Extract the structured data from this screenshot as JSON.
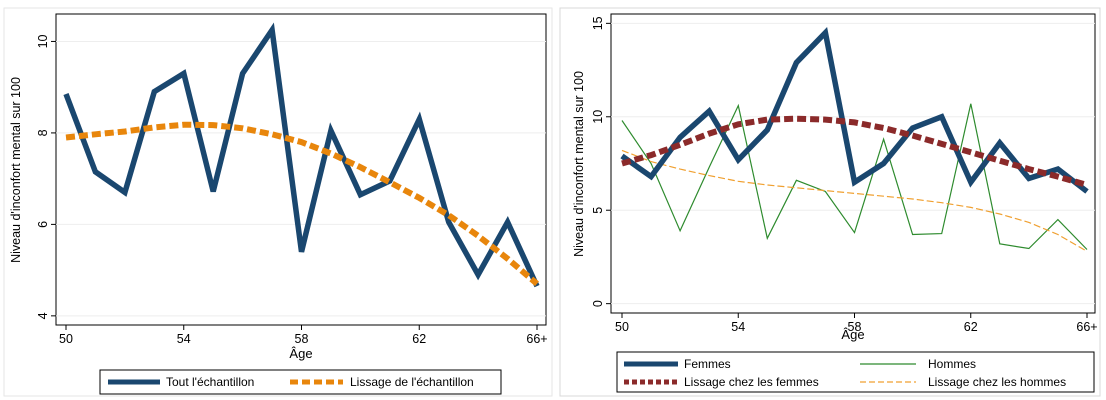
{
  "colors": {
    "navy": "#1a476f",
    "orange": "#e8860c",
    "green": "#2e8b2e",
    "maroon": "#8b2a2a",
    "light_orange": "#f0a030"
  },
  "chart_data": [
    {
      "type": "line",
      "xlabel": "Âge",
      "ylabel": "Niveau d'inconfort mental sur 100",
      "x": [
        50,
        51,
        52,
        53,
        54,
        55,
        56,
        57,
        58,
        59,
        60,
        61,
        62,
        63,
        64,
        65,
        66
      ],
      "xlim": [
        50,
        66
      ],
      "ylim": [
        3.8,
        10.6
      ],
      "xticks": [
        50,
        54,
        58,
        62,
        66
      ],
      "xtick_labels": [
        "50",
        "54",
        "58",
        "62",
        "66+"
      ],
      "yticks": [
        4,
        6,
        8,
        10
      ],
      "ytick_labels": [
        "4",
        "6",
        "8",
        "10"
      ],
      "legend_position": "bottom",
      "series": [
        {
          "name": "Tout l'échantillon",
          "style": "thick-solid",
          "color": "#1a476f",
          "values": [
            8.85,
            7.15,
            6.7,
            8.9,
            9.3,
            6.72,
            9.3,
            10.25,
            5.4,
            8.05,
            6.65,
            6.95,
            8.3,
            6.05,
            4.9,
            6.05,
            4.65
          ]
        },
        {
          "name": "Lissage de l'échantillon",
          "style": "thick-dashed",
          "color": "#e8860c",
          "values": [
            7.9,
            7.97,
            8.03,
            8.12,
            8.18,
            8.17,
            8.1,
            7.97,
            7.8,
            7.55,
            7.25,
            6.92,
            6.58,
            6.2,
            5.75,
            5.25,
            4.7
          ]
        }
      ]
    },
    {
      "type": "line",
      "xlabel": "Âge",
      "ylabel": "Niveau d'inconfort mental sur 100",
      "x": [
        50,
        51,
        52,
        53,
        54,
        55,
        56,
        57,
        58,
        59,
        60,
        61,
        62,
        63,
        64,
        65,
        66
      ],
      "xlim": [
        50,
        66
      ],
      "ylim": [
        -0.5,
        15.5
      ],
      "xticks": [
        50,
        54,
        58,
        62,
        66
      ],
      "xtick_labels": [
        "50",
        "54",
        "58",
        "62",
        "66+"
      ],
      "yticks": [
        0,
        5,
        10,
        15
      ],
      "ytick_labels": [
        "0",
        "5",
        "10",
        "15"
      ],
      "legend_position": "bottom",
      "series": [
        {
          "name": "Femmes",
          "style": "thick-solid",
          "color": "#1a476f",
          "values": [
            7.9,
            6.8,
            8.9,
            10.3,
            7.7,
            9.3,
            12.9,
            14.5,
            6.5,
            7.5,
            9.4,
            10.0,
            6.5,
            8.6,
            6.7,
            7.2,
            6.0
          ]
        },
        {
          "name": "Hommes",
          "style": "thin-solid",
          "color": "#2e8b2e",
          "values": [
            9.8,
            7.5,
            3.9,
            7.3,
            10.6,
            3.5,
            6.6,
            6.0,
            3.8,
            8.8,
            3.7,
            3.75,
            10.7,
            3.2,
            2.95,
            4.5,
            2.9
          ]
        },
        {
          "name": "Lissage chez les femmes",
          "style": "thick-dashed",
          "color": "#8b2a2a",
          "values": [
            7.5,
            7.95,
            8.5,
            9.1,
            9.6,
            9.85,
            9.9,
            9.85,
            9.7,
            9.4,
            9.0,
            8.55,
            8.1,
            7.65,
            7.2,
            6.8,
            6.35
          ]
        },
        {
          "name": "Lissage chez les hommes",
          "style": "thin-dashed",
          "color": "#f0a030",
          "values": [
            8.2,
            7.6,
            7.2,
            6.85,
            6.55,
            6.35,
            6.2,
            6.05,
            5.9,
            5.75,
            5.6,
            5.4,
            5.15,
            4.8,
            4.35,
            3.7,
            2.8
          ]
        }
      ]
    }
  ]
}
